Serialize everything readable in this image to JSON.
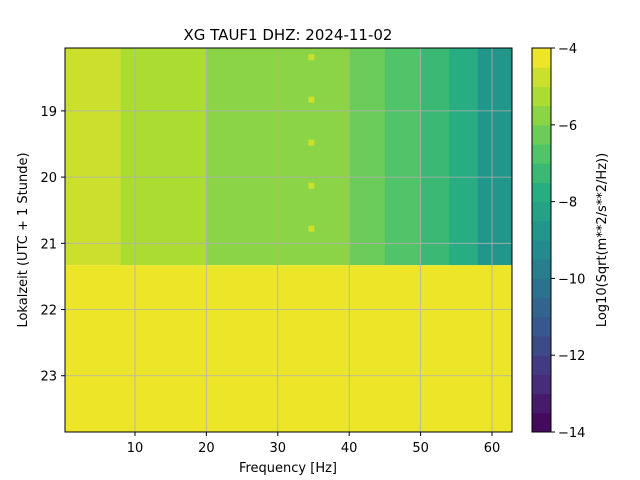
{
  "chart_data": {
    "type": "heatmap",
    "title": "XG TAUF1  DHZ: 2024-11-02",
    "xlabel": "Frequency [Hz]",
    "ylabel": "Lokalzeit (UTC + 1 Stunde)",
    "xlim": [
      0.2,
      62.8
    ],
    "ylim": [
      23.85,
      18.05
    ],
    "y_inverted": true,
    "x_ticks": [
      10,
      20,
      30,
      40,
      50,
      60
    ],
    "y_ticks": [
      19,
      20,
      21,
      22,
      23
    ],
    "grid": true,
    "data_end_time": 21.33,
    "fill_value": -4,
    "spectral_band_values": [
      {
        "f_max": 8,
        "value": -5.0
      },
      {
        "f_max": 20,
        "value": -5.3
      },
      {
        "f_max": 30,
        "value": -5.6
      },
      {
        "f_max": 40,
        "value": -5.9
      },
      {
        "f_max": 45,
        "value": -6.3
      },
      {
        "f_max": 50,
        "value": -6.8
      },
      {
        "f_max": 54,
        "value": -7.4
      },
      {
        "f_max": 58,
        "value": -8.0
      },
      {
        "f_max": 62.8,
        "value": -8.8
      }
    ],
    "spectral_lines": [
      {
        "frequency": 34.7,
        "times": [
          18.19,
          18.83,
          19.48,
          20.13,
          20.78
        ],
        "value": -4.6
      }
    ],
    "colorbar": {
      "label": "Log10(Sqrt(m**2/s**2/Hz))",
      "min": -14,
      "max": -4,
      "ticks": [
        -14,
        -12,
        -10,
        -8,
        -6,
        -4
      ],
      "levels": 20,
      "colormap": "viridis"
    }
  }
}
